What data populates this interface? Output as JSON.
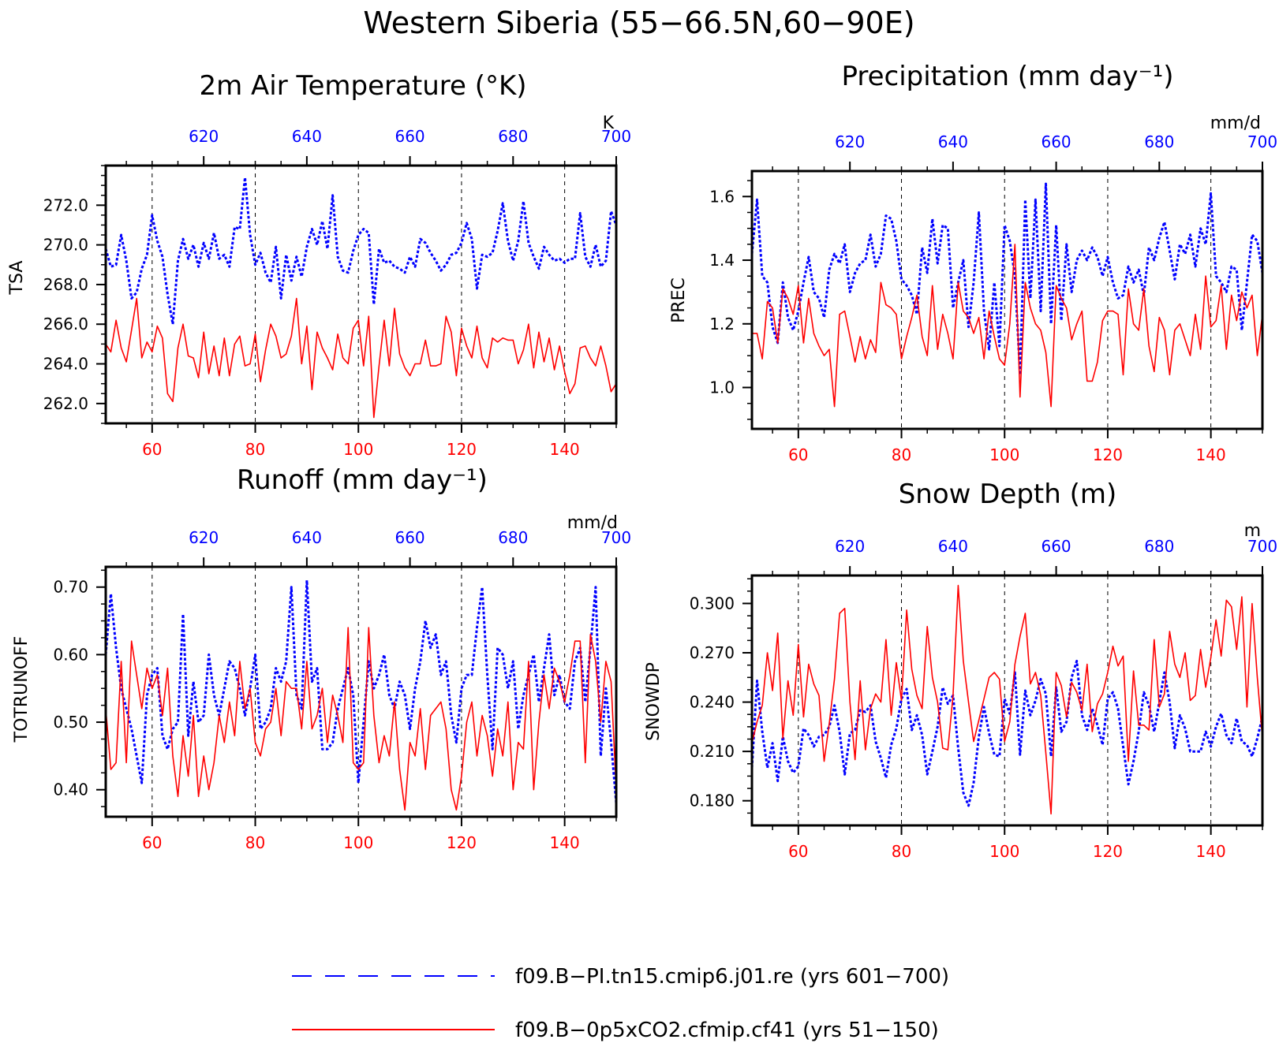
{
  "figure_title": "Western Siberia (55−66.5N,60−90E)",
  "colors": {
    "run_a": "#0000ff",
    "run_b": "#ff0000",
    "axis": "#000000"
  },
  "legend": [
    {
      "label": "f09.B−PI.tn15.cmip6.j01.re (yrs 601−700)",
      "color": "#0000ff",
      "style": "dashed"
    },
    {
      "label": "f09.B−0p5xCO2.cfmip.cf41 (yrs 51−150)",
      "color": "#ff0000",
      "style": "solid"
    }
  ],
  "chart_data": [
    {
      "type": "line",
      "panel": "tsa",
      "title": "2m Air Temperature (°K)",
      "unit_label": "K",
      "ylabel": "TSA",
      "bottom_xlim": [
        51,
        150
      ],
      "top_xlim": [
        601,
        700
      ],
      "ylim": [
        261,
        274
      ],
      "bottom_xticks": [
        60,
        80,
        100,
        120,
        140
      ],
      "top_xticks": [
        620,
        640,
        660,
        680,
        700
      ],
      "yticks": [
        262.0,
        264.0,
        266.0,
        268.0,
        270.0,
        272.0
      ],
      "ytick_decimals": 1,
      "yminor": 0.5,
      "series": [
        {
          "axis": "top",
          "color": "#0000ff",
          "dashed": true,
          "values": [
            269.8,
            268.9,
            269.0,
            270.5,
            269.2,
            267.3,
            267.6,
            268.8,
            269.5,
            271.5,
            270.2,
            269.4,
            267.5,
            266.0,
            269.2,
            270.3,
            269.3,
            270.0,
            268.9,
            270.1,
            269.3,
            270.6,
            269.3,
            269.5,
            268.9,
            270.9,
            270.8,
            273.4,
            270.5,
            269.0,
            269.6,
            268.6,
            268.1,
            269.9,
            267.3,
            269.5,
            268.2,
            269.4,
            268.4,
            269.9,
            270.8,
            270.0,
            271.2,
            269.8,
            272.5,
            269.4,
            268.7,
            268.6,
            269.7,
            270.5,
            270.8,
            270.6,
            267.0,
            269.8,
            269.1,
            269.2,
            268.9,
            268.8,
            268.6,
            269.4,
            268.9,
            270.3,
            270.1,
            269.6,
            269.2,
            268.7,
            269.0,
            269.5,
            269.6,
            270.1,
            271.1,
            270.3,
            267.8,
            269.5,
            269.4,
            269.6,
            270.7,
            272.1,
            270.2,
            269.2,
            270.2,
            272.2,
            270.1,
            269.4,
            268.8,
            269.9,
            269.5,
            269.2,
            269.3,
            269.1,
            269.3,
            269.3,
            271.6,
            269.4,
            268.9,
            270.0,
            268.9,
            269.2,
            271.7,
            271.0
          ]
        },
        {
          "axis": "bottom",
          "color": "#ff0000",
          "dashed": false,
          "values": [
            265.0,
            264.6,
            266.2,
            264.8,
            264.1,
            265.7,
            267.3,
            264.3,
            265.1,
            264.6,
            265.9,
            265.3,
            262.5,
            262.1,
            264.8,
            266.0,
            264.4,
            264.3,
            263.3,
            265.6,
            263.5,
            264.9,
            263.4,
            265.3,
            263.4,
            265.0,
            265.4,
            263.9,
            264.0,
            265.5,
            263.1,
            264.7,
            266.0,
            265.4,
            264.3,
            264.5,
            265.4,
            267.3,
            264.0,
            265.9,
            262.7,
            265.6,
            264.8,
            264.3,
            263.7,
            265.5,
            264.3,
            264.0,
            265.8,
            266.2,
            263.9,
            266.4,
            261.3,
            263.9,
            266.2,
            263.9,
            266.8,
            264.5,
            263.8,
            263.4,
            264.0,
            264.0,
            265.2,
            263.9,
            263.9,
            264.0,
            266.4,
            265.6,
            263.4,
            265.8,
            264.9,
            264.3,
            265.9,
            264.3,
            263.8,
            265.3,
            265.1,
            265.3,
            265.2,
            265.2,
            264.0,
            264.7,
            266.0,
            263.8,
            265.6,
            264.1,
            265.3,
            263.7,
            264.9,
            263.6,
            262.5,
            263.0,
            264.8,
            264.9,
            264.3,
            263.9,
            264.9,
            263.9,
            262.6,
            263.0
          ]
        }
      ]
    },
    {
      "type": "line",
      "panel": "prec",
      "title": "Precipitation (mm day⁻¹)",
      "unit_label": "mm/d",
      "ylabel": "PREC",
      "bottom_xlim": [
        51,
        150
      ],
      "top_xlim": [
        601,
        700
      ],
      "ylim": [
        0.87,
        1.68
      ],
      "bottom_xticks": [
        60,
        80,
        100,
        120,
        140
      ],
      "top_xticks": [
        620,
        640,
        660,
        680,
        700
      ],
      "yticks": [
        1.0,
        1.2,
        1.4,
        1.6
      ],
      "ytick_decimals": 1,
      "yminor": 0.05,
      "series": [
        {
          "axis": "top",
          "color": "#0000ff",
          "dashed": true,
          "values": [
            1.42,
            1.59,
            1.35,
            1.33,
            1.19,
            1.14,
            1.33,
            1.22,
            1.18,
            1.24,
            1.33,
            1.41,
            1.3,
            1.28,
            1.22,
            1.37,
            1.42,
            1.39,
            1.45,
            1.3,
            1.36,
            1.39,
            1.4,
            1.48,
            1.38,
            1.42,
            1.54,
            1.53,
            1.46,
            1.34,
            1.32,
            1.29,
            1.23,
            1.44,
            1.36,
            1.53,
            1.39,
            1.51,
            1.5,
            1.25,
            1.33,
            1.4,
            1.19,
            1.33,
            1.55,
            1.24,
            1.12,
            1.33,
            1.13,
            1.51,
            1.46,
            1.35,
            1.04,
            1.59,
            1.28,
            1.59,
            1.24,
            1.64,
            1.2,
            1.51,
            1.21,
            1.45,
            1.3,
            1.4,
            1.43,
            1.4,
            1.44,
            1.41,
            1.35,
            1.41,
            1.33,
            1.28,
            1.29,
            1.38,
            1.33,
            1.37,
            1.29,
            1.44,
            1.4,
            1.47,
            1.52,
            1.43,
            1.34,
            1.45,
            1.42,
            1.48,
            1.38,
            1.5,
            1.45,
            1.61,
            1.35,
            1.33,
            1.3,
            1.38,
            1.37,
            1.18,
            1.33,
            1.48,
            1.46,
            1.36
          ]
        },
        {
          "axis": "bottom",
          "color": "#ff0000",
          "dashed": false,
          "values": [
            1.17,
            1.17,
            1.09,
            1.27,
            1.25,
            1.14,
            1.31,
            1.28,
            1.23,
            1.32,
            1.14,
            1.28,
            1.17,
            1.13,
            1.1,
            1.12,
            0.94,
            1.23,
            1.24,
            1.16,
            1.08,
            1.16,
            1.09,
            1.15,
            1.11,
            1.33,
            1.26,
            1.25,
            1.23,
            1.09,
            1.16,
            1.22,
            1.29,
            1.16,
            1.1,
            1.32,
            1.12,
            1.23,
            1.17,
            1.09,
            1.33,
            1.24,
            1.22,
            1.17,
            1.22,
            1.09,
            1.24,
            1.16,
            1.09,
            1.07,
            1.2,
            1.45,
            0.97,
            1.33,
            1.25,
            1.2,
            1.18,
            1.11,
            0.94,
            1.32,
            1.28,
            1.25,
            1.15,
            1.2,
            1.24,
            1.02,
            1.02,
            1.08,
            1.21,
            1.24,
            1.24,
            1.23,
            1.04,
            1.31,
            1.2,
            1.18,
            1.31,
            1.13,
            1.05,
            1.22,
            1.18,
            1.04,
            1.18,
            1.2,
            1.15,
            1.1,
            1.23,
            1.12,
            1.35,
            1.19,
            1.21,
            1.32,
            1.12,
            1.29,
            1.21,
            1.3,
            1.25,
            1.29,
            1.1,
            1.23
          ]
        }
      ]
    },
    {
      "type": "line",
      "panel": "runoff",
      "title": "Runoff (mm day⁻¹)",
      "unit_label": "mm/d",
      "ylabel": "TOTRUNOFF",
      "bottom_xlim": [
        51,
        150
      ],
      "top_xlim": [
        601,
        700
      ],
      "ylim": [
        0.36,
        0.73
      ],
      "bottom_xticks": [
        60,
        80,
        100,
        120,
        140
      ],
      "top_xticks": [
        620,
        640,
        660,
        680,
        700
      ],
      "yticks": [
        0.4,
        0.5,
        0.6,
        0.7
      ],
      "ytick_decimals": 2,
      "yminor": 0.025,
      "series": [
        {
          "axis": "top",
          "color": "#0000ff",
          "dashed": true,
          "values": [
            0.6,
            0.69,
            0.61,
            0.55,
            0.52,
            0.49,
            0.45,
            0.41,
            0.54,
            0.57,
            0.58,
            0.48,
            0.46,
            0.49,
            0.5,
            0.66,
            0.48,
            0.56,
            0.5,
            0.51,
            0.6,
            0.54,
            0.51,
            0.55,
            0.59,
            0.58,
            0.55,
            0.51,
            0.55,
            0.6,
            0.49,
            0.5,
            0.52,
            0.58,
            0.56,
            0.59,
            0.7,
            0.54,
            0.52,
            0.71,
            0.56,
            0.58,
            0.46,
            0.46,
            0.47,
            0.52,
            0.55,
            0.58,
            0.54,
            0.41,
            0.5,
            0.59,
            0.55,
            0.57,
            0.6,
            0.54,
            0.52,
            0.56,
            0.54,
            0.49,
            0.55,
            0.59,
            0.65,
            0.61,
            0.63,
            0.57,
            0.59,
            0.51,
            0.47,
            0.55,
            0.57,
            0.57,
            0.64,
            0.7,
            0.57,
            0.46,
            0.61,
            0.6,
            0.55,
            0.59,
            0.49,
            0.54,
            0.57,
            0.6,
            0.53,
            0.58,
            0.63,
            0.54,
            0.57,
            0.53,
            0.52,
            0.59,
            0.61,
            0.53,
            0.61,
            0.7,
            0.45,
            0.55,
            0.47,
            0.38
          ]
        },
        {
          "axis": "bottom",
          "color": "#ff0000",
          "dashed": false,
          "values": [
            0.52,
            0.43,
            0.44,
            0.59,
            0.44,
            0.62,
            0.57,
            0.52,
            0.58,
            0.55,
            0.57,
            0.51,
            0.58,
            0.45,
            0.39,
            0.48,
            0.42,
            0.51,
            0.39,
            0.45,
            0.4,
            0.44,
            0.51,
            0.47,
            0.53,
            0.48,
            0.59,
            0.52,
            0.55,
            0.47,
            0.45,
            0.49,
            0.5,
            0.55,
            0.48,
            0.56,
            0.55,
            0.55,
            0.49,
            0.59,
            0.49,
            0.51,
            0.55,
            0.47,
            0.54,
            0.51,
            0.47,
            0.64,
            0.44,
            0.43,
            0.44,
            0.64,
            0.51,
            0.44,
            0.48,
            0.45,
            0.53,
            0.43,
            0.37,
            0.47,
            0.45,
            0.52,
            0.43,
            0.51,
            0.52,
            0.53,
            0.49,
            0.4,
            0.37,
            0.42,
            0.5,
            0.53,
            0.45,
            0.51,
            0.48,
            0.42,
            0.49,
            0.45,
            0.53,
            0.4,
            0.47,
            0.46,
            0.59,
            0.4,
            0.5,
            0.57,
            0.52,
            0.58,
            0.56,
            0.53,
            0.57,
            0.62,
            0.62,
            0.44,
            0.63,
            0.59,
            0.5,
            0.59,
            0.56,
            0.4
          ]
        }
      ]
    },
    {
      "type": "line",
      "panel": "snowdp",
      "title": "Snow Depth (m)",
      "unit_label": "m",
      "ylabel": "SNOWDP",
      "bottom_xlim": [
        51,
        150
      ],
      "top_xlim": [
        601,
        700
      ],
      "ylim": [
        0.165,
        0.317
      ],
      "bottom_xticks": [
        60,
        80,
        100,
        120,
        140
      ],
      "top_xticks": [
        620,
        640,
        660,
        680,
        700
      ],
      "yticks": [
        0.18,
        0.21,
        0.24,
        0.27,
        0.3
      ],
      "ytick_decimals": 3,
      "yminor": 0.0075,
      "series": [
        {
          "axis": "top",
          "color": "#0000ff",
          "dashed": true,
          "values": [
            0.2,
            0.253,
            0.222,
            0.2,
            0.215,
            0.192,
            0.219,
            0.204,
            0.197,
            0.201,
            0.224,
            0.22,
            0.213,
            0.219,
            0.22,
            0.225,
            0.238,
            0.222,
            0.196,
            0.221,
            0.223,
            0.235,
            0.234,
            0.238,
            0.216,
            0.206,
            0.194,
            0.214,
            0.224,
            0.242,
            0.248,
            0.223,
            0.232,
            0.22,
            0.196,
            0.21,
            0.225,
            0.249,
            0.239,
            0.244,
            0.212,
            0.185,
            0.177,
            0.191,
            0.219,
            0.237,
            0.221,
            0.208,
            0.207,
            0.242,
            0.233,
            0.258,
            0.208,
            0.247,
            0.232,
            0.241,
            0.254,
            0.245,
            0.207,
            0.249,
            0.222,
            0.228,
            0.255,
            0.265,
            0.232,
            0.223,
            0.236,
            0.226,
            0.214,
            0.242,
            0.246,
            0.236,
            0.213,
            0.19,
            0.204,
            0.222,
            0.246,
            0.238,
            0.222,
            0.24,
            0.258,
            0.24,
            0.212,
            0.232,
            0.224,
            0.21,
            0.21,
            0.21,
            0.222,
            0.213,
            0.225,
            0.233,
            0.22,
            0.215,
            0.23,
            0.216,
            0.214,
            0.207,
            0.218,
            0.231
          ]
        },
        {
          "axis": "bottom",
          "color": "#ff0000",
          "dashed": false,
          "values": [
            0.215,
            0.228,
            0.238,
            0.27,
            0.247,
            0.282,
            0.218,
            0.253,
            0.232,
            0.275,
            0.231,
            0.263,
            0.251,
            0.244,
            0.204,
            0.227,
            0.254,
            0.294,
            0.297,
            0.24,
            0.205,
            0.253,
            0.211,
            0.236,
            0.245,
            0.24,
            0.278,
            0.232,
            0.264,
            0.241,
            0.296,
            0.26,
            0.244,
            0.236,
            0.286,
            0.255,
            0.24,
            0.212,
            0.211,
            0.244,
            0.311,
            0.265,
            0.24,
            0.216,
            0.229,
            0.242,
            0.255,
            0.258,
            0.254,
            0.216,
            0.228,
            0.263,
            0.28,
            0.294,
            0.251,
            0.258,
            0.244,
            0.209,
            0.172,
            0.258,
            0.25,
            0.231,
            0.252,
            0.246,
            0.235,
            0.263,
            0.222,
            0.239,
            0.245,
            0.258,
            0.274,
            0.262,
            0.268,
            0.204,
            0.259,
            0.226,
            0.226,
            0.223,
            0.278,
            0.237,
            0.245,
            0.283,
            0.263,
            0.255,
            0.27,
            0.241,
            0.244,
            0.272,
            0.249,
            0.267,
            0.29,
            0.268,
            0.302,
            0.298,
            0.272,
            0.304,
            0.237,
            0.3,
            0.255,
            0.218
          ]
        }
      ]
    }
  ]
}
